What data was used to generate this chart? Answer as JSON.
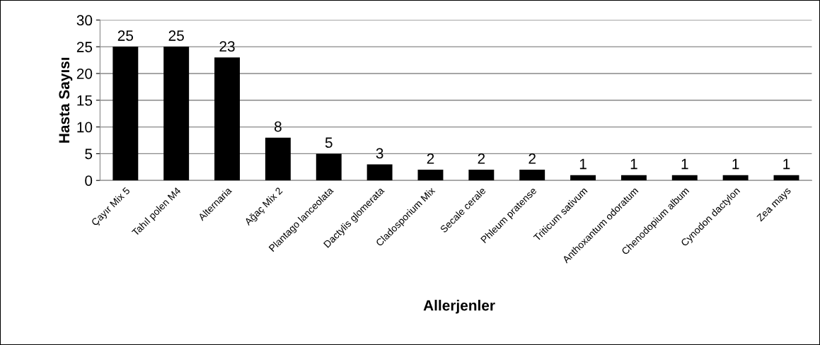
{
  "chart_data": {
    "type": "bar",
    "xlabel": "Allerjenler",
    "ylabel": "Hasta Sayısı",
    "categories": [
      "Çayır Mix 5",
      "Tahıl polen M4",
      "Alternaria",
      "Ağaç Mix 2",
      "Plantago lanceolata",
      "Dactylis glomerata",
      "Cladosporium Mix",
      "Secale cerale",
      "Phleum pratense",
      "Triticum sativum",
      "Anthoxantum odoratum",
      "Chenodopium album",
      "Cynodon dactylon",
      "Zea mays"
    ],
    "values": [
      25,
      25,
      23,
      8,
      5,
      3,
      2,
      2,
      2,
      1,
      1,
      1,
      1,
      1
    ],
    "color": "#000000",
    "ylim": [
      0,
      30
    ],
    "yticks": [
      0,
      5,
      10,
      15,
      20,
      25,
      30
    ],
    "grid": "y",
    "data_labels": true
  }
}
